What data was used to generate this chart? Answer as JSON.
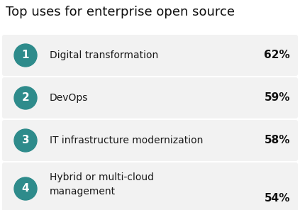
{
  "title": "Top uses for enterprise open source",
  "items": [
    {
      "rank": "1",
      "label": "Digital transformation",
      "value": "62%",
      "multiline": false
    },
    {
      "rank": "2",
      "label": "DevOps",
      "value": "59%",
      "multiline": false
    },
    {
      "rank": "3",
      "label": "IT infrastructure modernization",
      "value": "58%",
      "multiline": false
    },
    {
      "rank": "4",
      "label": "Hybrid or multi-cloud\nmanagement",
      "value": "54%",
      "multiline": true
    }
  ],
  "bg_color": "#ffffff",
  "row_bg_color": "#f2f2f2",
  "circle_color": "#2e8b8b",
  "circle_text_color": "#ffffff",
  "label_color": "#1a1a1a",
  "value_color": "#111111",
  "title_color": "#111111",
  "title_fontsize": 13,
  "label_fontsize": 10,
  "value_fontsize": 11,
  "rank_fontsize": 11
}
